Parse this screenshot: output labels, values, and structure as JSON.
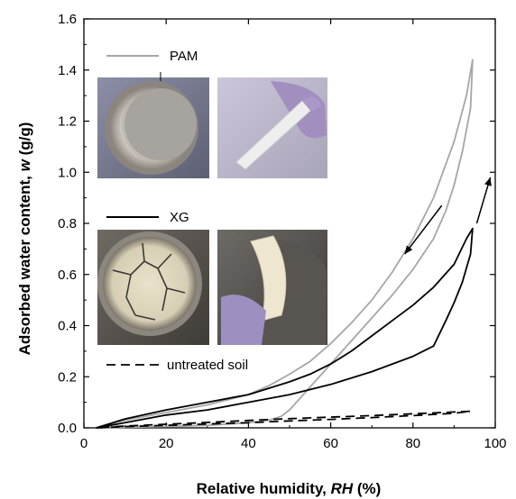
{
  "chart_data": {
    "type": "line",
    "xlabel": "Relative humidity, ",
    "xlabel_var": "RH",
    "xlabel_unit": " (%)",
    "ylabel": "Adsorbed water content, ",
    "ylabel_var": "w",
    "ylabel_unit": " (g/g)",
    "xlim": [
      0,
      100
    ],
    "ylim": [
      0,
      1.6
    ],
    "xticks": [
      "0",
      "20",
      "40",
      "60",
      "80",
      "100"
    ],
    "yticks": [
      "0.0",
      "0.2",
      "0.4",
      "0.6",
      "0.8",
      "1.0",
      "1.2",
      "1.4",
      "1.6"
    ],
    "grid": false,
    "legend_position": "left",
    "series": [
      {
        "name": "PAM",
        "color": "#a6a6a6",
        "style": "solid",
        "x": [
          3,
          10,
          20,
          30,
          40,
          45,
          48,
          50,
          55,
          60,
          65,
          70,
          75,
          80,
          85,
          88,
          90,
          92,
          94,
          94.5,
          93,
          90,
          85,
          80,
          75,
          70,
          65,
          60,
          55,
          50,
          45,
          40,
          30,
          20,
          10,
          3
        ],
        "y": [
          0,
          0.002,
          0.005,
          0.01,
          0.02,
          0.03,
          0.045,
          0.07,
          0.16,
          0.25,
          0.34,
          0.43,
          0.52,
          0.62,
          0.74,
          0.85,
          0.95,
          1.08,
          1.25,
          1.44,
          1.3,
          1.12,
          0.9,
          0.74,
          0.61,
          0.5,
          0.41,
          0.33,
          0.26,
          0.21,
          0.165,
          0.13,
          0.09,
          0.06,
          0.03,
          0
        ]
      },
      {
        "name": "XG",
        "color": "#000000",
        "style": "solid",
        "x": [
          3,
          10,
          20,
          30,
          40,
          50,
          60,
          70,
          80,
          85,
          88,
          90,
          92,
          94,
          94.5,
          93,
          90,
          85,
          80,
          75,
          70,
          65,
          60,
          55,
          50,
          40,
          30,
          20,
          10,
          3
        ],
        "y": [
          0,
          0.02,
          0.05,
          0.07,
          0.1,
          0.13,
          0.17,
          0.22,
          0.28,
          0.32,
          0.42,
          0.49,
          0.57,
          0.68,
          0.78,
          0.74,
          0.64,
          0.55,
          0.48,
          0.42,
          0.36,
          0.3,
          0.25,
          0.21,
          0.18,
          0.13,
          0.1,
          0.07,
          0.035,
          0
        ]
      },
      {
        "name": "untreated soil",
        "color": "#000000",
        "style": "dashed",
        "x": [
          3,
          10,
          20,
          30,
          40,
          50,
          60,
          70,
          80,
          90,
          94,
          90,
          80,
          70,
          60,
          50,
          40,
          30,
          20,
          10,
          3
        ],
        "y": [
          0,
          0.005,
          0.01,
          0.015,
          0.02,
          0.027,
          0.033,
          0.04,
          0.048,
          0.057,
          0.065,
          0.062,
          0.055,
          0.048,
          0.042,
          0.036,
          0.029,
          0.021,
          0.014,
          0.007,
          0
        ]
      }
    ],
    "annotations": [
      {
        "type": "arrow",
        "from": [
          87,
          0.87
        ],
        "to": [
          78,
          0.68
        ]
      },
      {
        "type": "arrow",
        "from": [
          95.5,
          0.8
        ],
        "to": [
          98.8,
          0.98
        ]
      }
    ],
    "photos": [
      {
        "name": "pam-dish-photo",
        "description_id": "pam-dish"
      },
      {
        "name": "pam-piece-photo",
        "description_id": "pam-piece"
      },
      {
        "name": "xg-dish-photo",
        "description_id": "xg-dish"
      },
      {
        "name": "xg-piece-photo",
        "description_id": "xg-piece"
      }
    ]
  }
}
